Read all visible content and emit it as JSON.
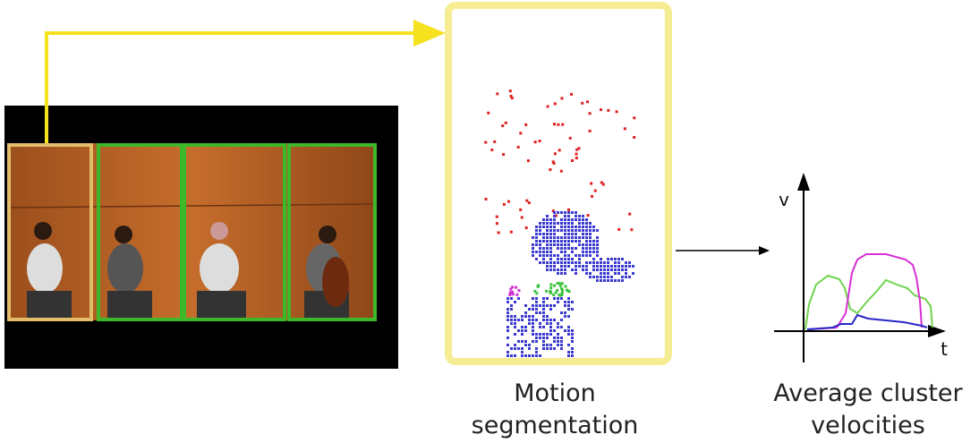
{
  "segmentation_caption": {
    "line1": "Motion",
    "line2": "segmentation"
  },
  "velocity_caption": {
    "line1": "Average cluster",
    "line2": "velocities"
  },
  "plot": {
    "y_axis": "v",
    "x_axis": "t"
  }
}
